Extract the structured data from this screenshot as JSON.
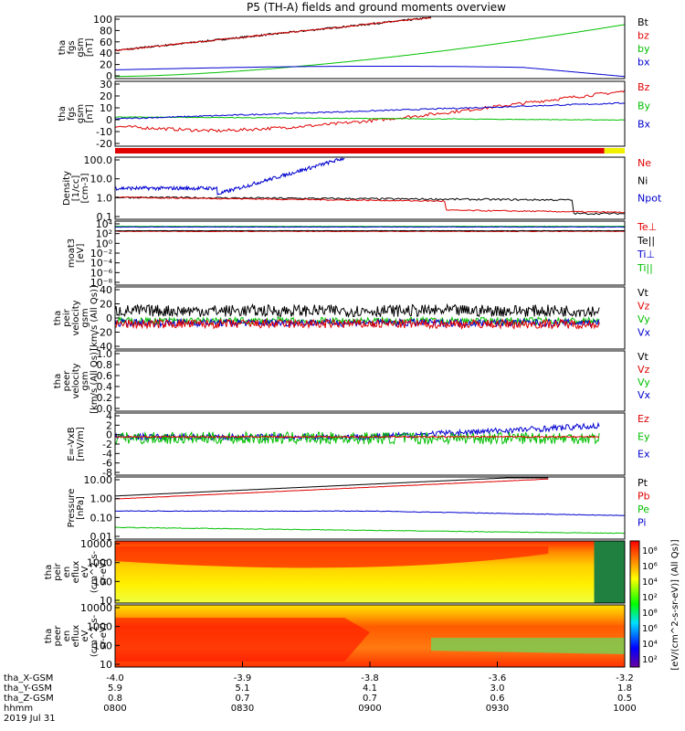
{
  "title": "P5 (TH-A) fields and ground moments overview",
  "colors": {
    "black": "#000000",
    "red": "#e00000",
    "green": "#00c000",
    "blue": "#0000d0",
    "yellow": "#f0f000"
  },
  "panels": [
    {
      "id": "bmag",
      "ylabel": [
        "tha",
        "fgs",
        "gsm",
        "[nT]"
      ],
      "ticks": [
        "100",
        "80",
        "60",
        "40",
        "20",
        "0"
      ],
      "legend": [
        {
          "text": "Bt",
          "color": "black"
        },
        {
          "text": "bz",
          "color": "red"
        },
        {
          "text": "by",
          "color": "green"
        },
        {
          "text": "bx",
          "color": "blue"
        }
      ]
    },
    {
      "id": "bcomp",
      "ylabel": [
        "tha",
        "fgs",
        "gsm",
        "[nT]"
      ],
      "ticks": [
        "30",
        "20",
        "10",
        "0",
        "-10",
        "-20"
      ],
      "legend": [
        {
          "text": "Bz",
          "color": "red"
        },
        {
          "text": "By",
          "color": "green"
        },
        {
          "text": "Bx",
          "color": "blue"
        }
      ]
    },
    {
      "id": "density",
      "ylabel": [
        "Density",
        "[1/cc]",
        "[cm-3]"
      ],
      "ticks": [
        "100.0",
        "10.0",
        "1.0",
        "0.1"
      ],
      "legend": [
        {
          "text": "Ne",
          "color": "red"
        },
        {
          "text": "Ni",
          "color": "black"
        },
        {
          "text": "Npot",
          "color": "blue"
        }
      ]
    },
    {
      "id": "temp",
      "ylabel": [
        "moat3",
        "[eV]"
      ],
      "ticks": [
        "10⁴",
        "10²",
        "10⁰",
        "10⁻²",
        "10⁻⁴",
        "10⁻⁶",
        "10⁻⁸"
      ],
      "legend": [
        {
          "text": "Te⊥",
          "color": "red"
        },
        {
          "text": "Te||",
          "color": "black"
        },
        {
          "text": "Ti⊥",
          "color": "blue"
        },
        {
          "text": "Ti||",
          "color": "green"
        }
      ]
    },
    {
      "id": "peir_vel",
      "ylabel": [
        "tha",
        "peir",
        "velocity",
        "gsm",
        "[km/s (All Qs)]"
      ],
      "ticks": [
        "40",
        "20",
        "0",
        "-20",
        "-40"
      ],
      "legend": [
        {
          "text": "Vt",
          "color": "black"
        },
        {
          "text": "Vz",
          "color": "red"
        },
        {
          "text": "Vy",
          "color": "green"
        },
        {
          "text": "Vx",
          "color": "blue"
        }
      ]
    },
    {
      "id": "peer_vel",
      "ylabel": [
        "tha",
        "peer",
        "velocity",
        "gsm",
        "[km/s (All Qs)]"
      ],
      "ticks": [
        "1.0",
        "0.8",
        "0.6",
        "0.4",
        "0.2",
        "0.0"
      ],
      "legend": [
        {
          "text": "Vt",
          "color": "black"
        },
        {
          "text": "Vz",
          "color": "red"
        },
        {
          "text": "Vy",
          "color": "green"
        },
        {
          "text": "Vx",
          "color": "blue"
        }
      ]
    },
    {
      "id": "efield",
      "ylabel": [
        "E=-VxB",
        "[mV/m]"
      ],
      "ticks": [
        "4",
        "2",
        "0",
        "-2",
        "-4",
        "-6",
        "-8"
      ],
      "legend": [
        {
          "text": "Ez",
          "color": "red"
        },
        {
          "text": "Ey",
          "color": "green"
        },
        {
          "text": "Ex",
          "color": "blue"
        }
      ]
    },
    {
      "id": "pressure",
      "ylabel": [
        "Pressure",
        "[nPa]"
      ],
      "ticks": [
        "10.00",
        "1.00",
        "0.10",
        "0.01"
      ],
      "legend": [
        {
          "text": "Pt",
          "color": "black"
        },
        {
          "text": "Pb",
          "color": "red"
        },
        {
          "text": "Pe",
          "color": "green"
        },
        {
          "text": "Pi",
          "color": "blue"
        }
      ]
    },
    {
      "id": "peir_spec",
      "ylabel": [
        "tha",
        "peir",
        "en",
        "eflux",
        "eV",
        "(cm^2-s-",
        "sr-eV)"
      ],
      "ticks": [
        "10000",
        "1000",
        "100",
        "10"
      ],
      "legend": []
    },
    {
      "id": "peer_spec",
      "ylabel": [
        "tha",
        "peer",
        "en",
        "eflux",
        "eV",
        "(cm^2-s-",
        "sr-eV)"
      ],
      "ticks": [
        "10000",
        "1000",
        "100",
        "10"
      ],
      "legend": []
    }
  ],
  "colorbar": {
    "ticks": [
      "10⁸",
      "10⁶",
      "10⁴",
      "10²",
      "10⁸",
      "10⁶",
      "10⁴",
      "10²"
    ],
    "label": "[eV/(cm^2-s-sr-eV)] (All Qs)]"
  },
  "xaxis": {
    "row_labels": [
      "tha_X-GSM",
      "tha_Y-GSM",
      "tha_Z-GSM",
      "hhmm",
      "2019 Jul 31"
    ],
    "columns": [
      [
        "-4.0",
        "5.9",
        "0.8",
        "0800"
      ],
      [
        "-3.9",
        "5.1",
        "0.7",
        "0830"
      ],
      [
        "-3.8",
        "4.1",
        "0.7",
        "0900"
      ],
      [
        "-3.6",
        "3.0",
        "0.6",
        "0930"
      ],
      [
        "-3.2",
        "1.8",
        "0.5",
        "1000"
      ]
    ]
  },
  "chart_data": {
    "type": "line",
    "title": "P5 (TH-A) fields and ground moments overview",
    "x_time_range": [
      "0800",
      "1000"
    ],
    "series_summary": [
      {
        "panel": "tha_fgs_gsm |B|",
        "name": "Bt",
        "approx_start": 45,
        "approx_end": 100
      },
      {
        "panel": "tha_fgs_gsm |B|",
        "name": "by",
        "approx_start": 2,
        "approx_end": 88
      },
      {
        "panel": "tha_fgs_gsm |B|",
        "name": "bx",
        "approx_start": 13,
        "approx_end": 0
      },
      {
        "panel": "tha_fgs_gsm",
        "name": "Bz",
        "approx_start": -15,
        "approx_end": 25
      },
      {
        "panel": "tha_fgs_gsm",
        "name": "By",
        "approx_start": 0,
        "approx_end": -5
      },
      {
        "panel": "tha_fgs_gsm",
        "name": "Bx",
        "approx_start": 0,
        "approx_end": 10
      }
    ]
  }
}
